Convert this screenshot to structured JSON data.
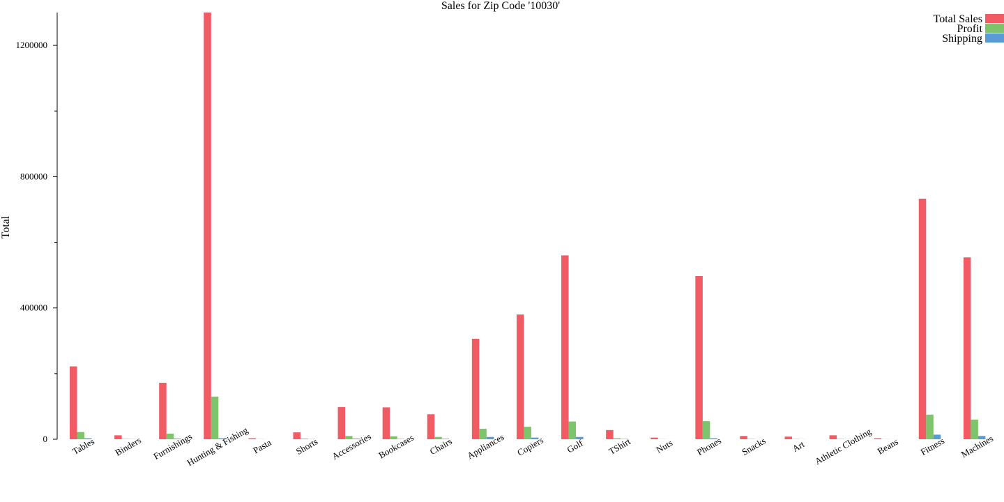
{
  "chart_data": {
    "type": "bar",
    "title": "Sales for Zip Code '10030'",
    "xlabel": "",
    "ylabel": "Total",
    "ylim": [
      0,
      1300000
    ],
    "yticks": [
      0,
      400000,
      800000,
      1200000
    ],
    "yminor_step": 200000,
    "grid": false,
    "legend_position": "top-right",
    "categories": [
      "Tables",
      "Binders",
      "Furnishings",
      "Hunting & Fishing",
      "Pasta",
      "Shorts",
      "Accessories",
      "Bookcases",
      "Chairs",
      "Appliances",
      "Copiers",
      "Golf",
      "TShirt",
      "Nuts",
      "Phones",
      "Snacks",
      "Art",
      "Athletic Clothing",
      "Beans",
      "Fitness",
      "Machines"
    ],
    "series": [
      {
        "name": "Total Sales",
        "color": "#f25a64",
        "values": [
          222000,
          12000,
          172000,
          1300000,
          3000,
          21000,
          98000,
          97000,
          76000,
          306000,
          380000,
          560000,
          28000,
          5000,
          497000,
          10000,
          8000,
          12000,
          3000,
          733000,
          554000
        ]
      },
      {
        "name": "Profit",
        "color": "#7ec46c",
        "values": [
          22000,
          1000,
          17000,
          130000,
          500,
          2000,
          10000,
          9000,
          7000,
          32000,
          38000,
          54000,
          3000,
          500,
          55000,
          1000,
          800,
          1000,
          300,
          75000,
          60000
        ]
      },
      {
        "name": "Shipping",
        "color": "#5a9bd5",
        "values": [
          3000,
          500,
          2000,
          3000,
          100,
          500,
          2000,
          1000,
          1500,
          7000,
          5000,
          7000,
          1000,
          100,
          3000,
          200,
          200,
          300,
          100,
          14000,
          10000
        ]
      }
    ]
  }
}
